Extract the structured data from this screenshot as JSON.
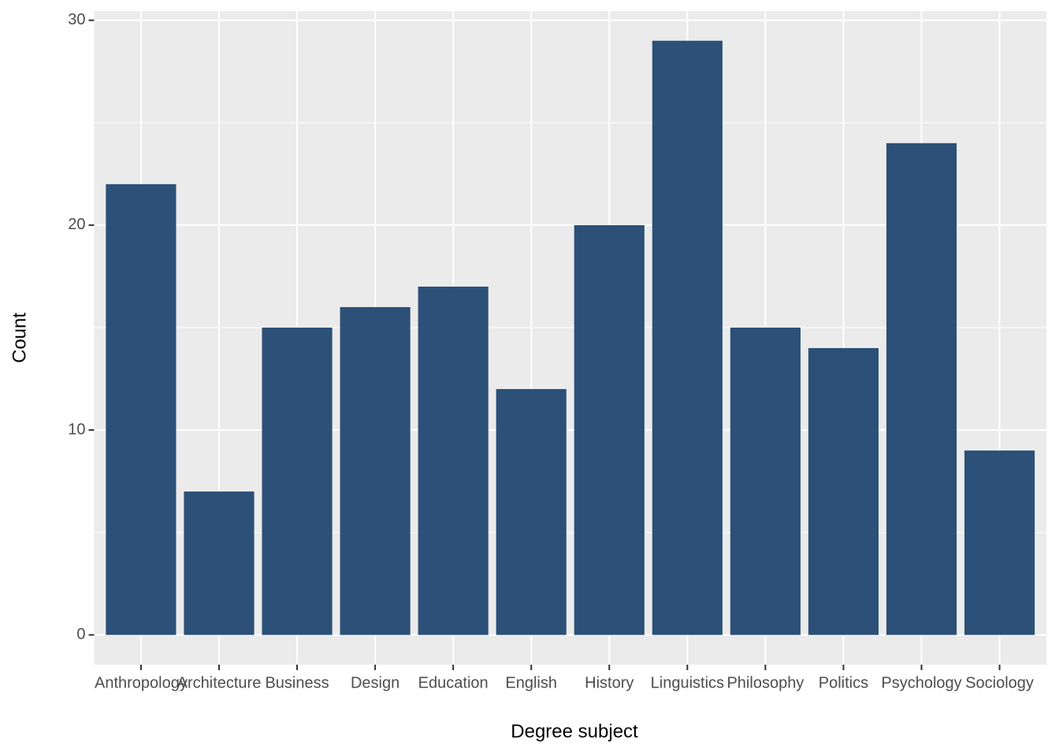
{
  "chart_data": {
    "type": "bar",
    "x_label": "Degree subject",
    "y_label": "Count",
    "categories": [
      "Anthropology",
      "Architecture",
      "Business",
      "Design",
      "Education",
      "English",
      "History",
      "Linguistics",
      "Philosophy",
      "Politics",
      "Psychology",
      "Sociology"
    ],
    "values": [
      22,
      7,
      15,
      16,
      17,
      12,
      20,
      29,
      15,
      14,
      24,
      9
    ],
    "color": "#2c5078",
    "ylim": [
      -1.45,
      30.45
    ],
    "yticks": [
      0,
      10,
      20,
      30
    ],
    "grid": true
  }
}
